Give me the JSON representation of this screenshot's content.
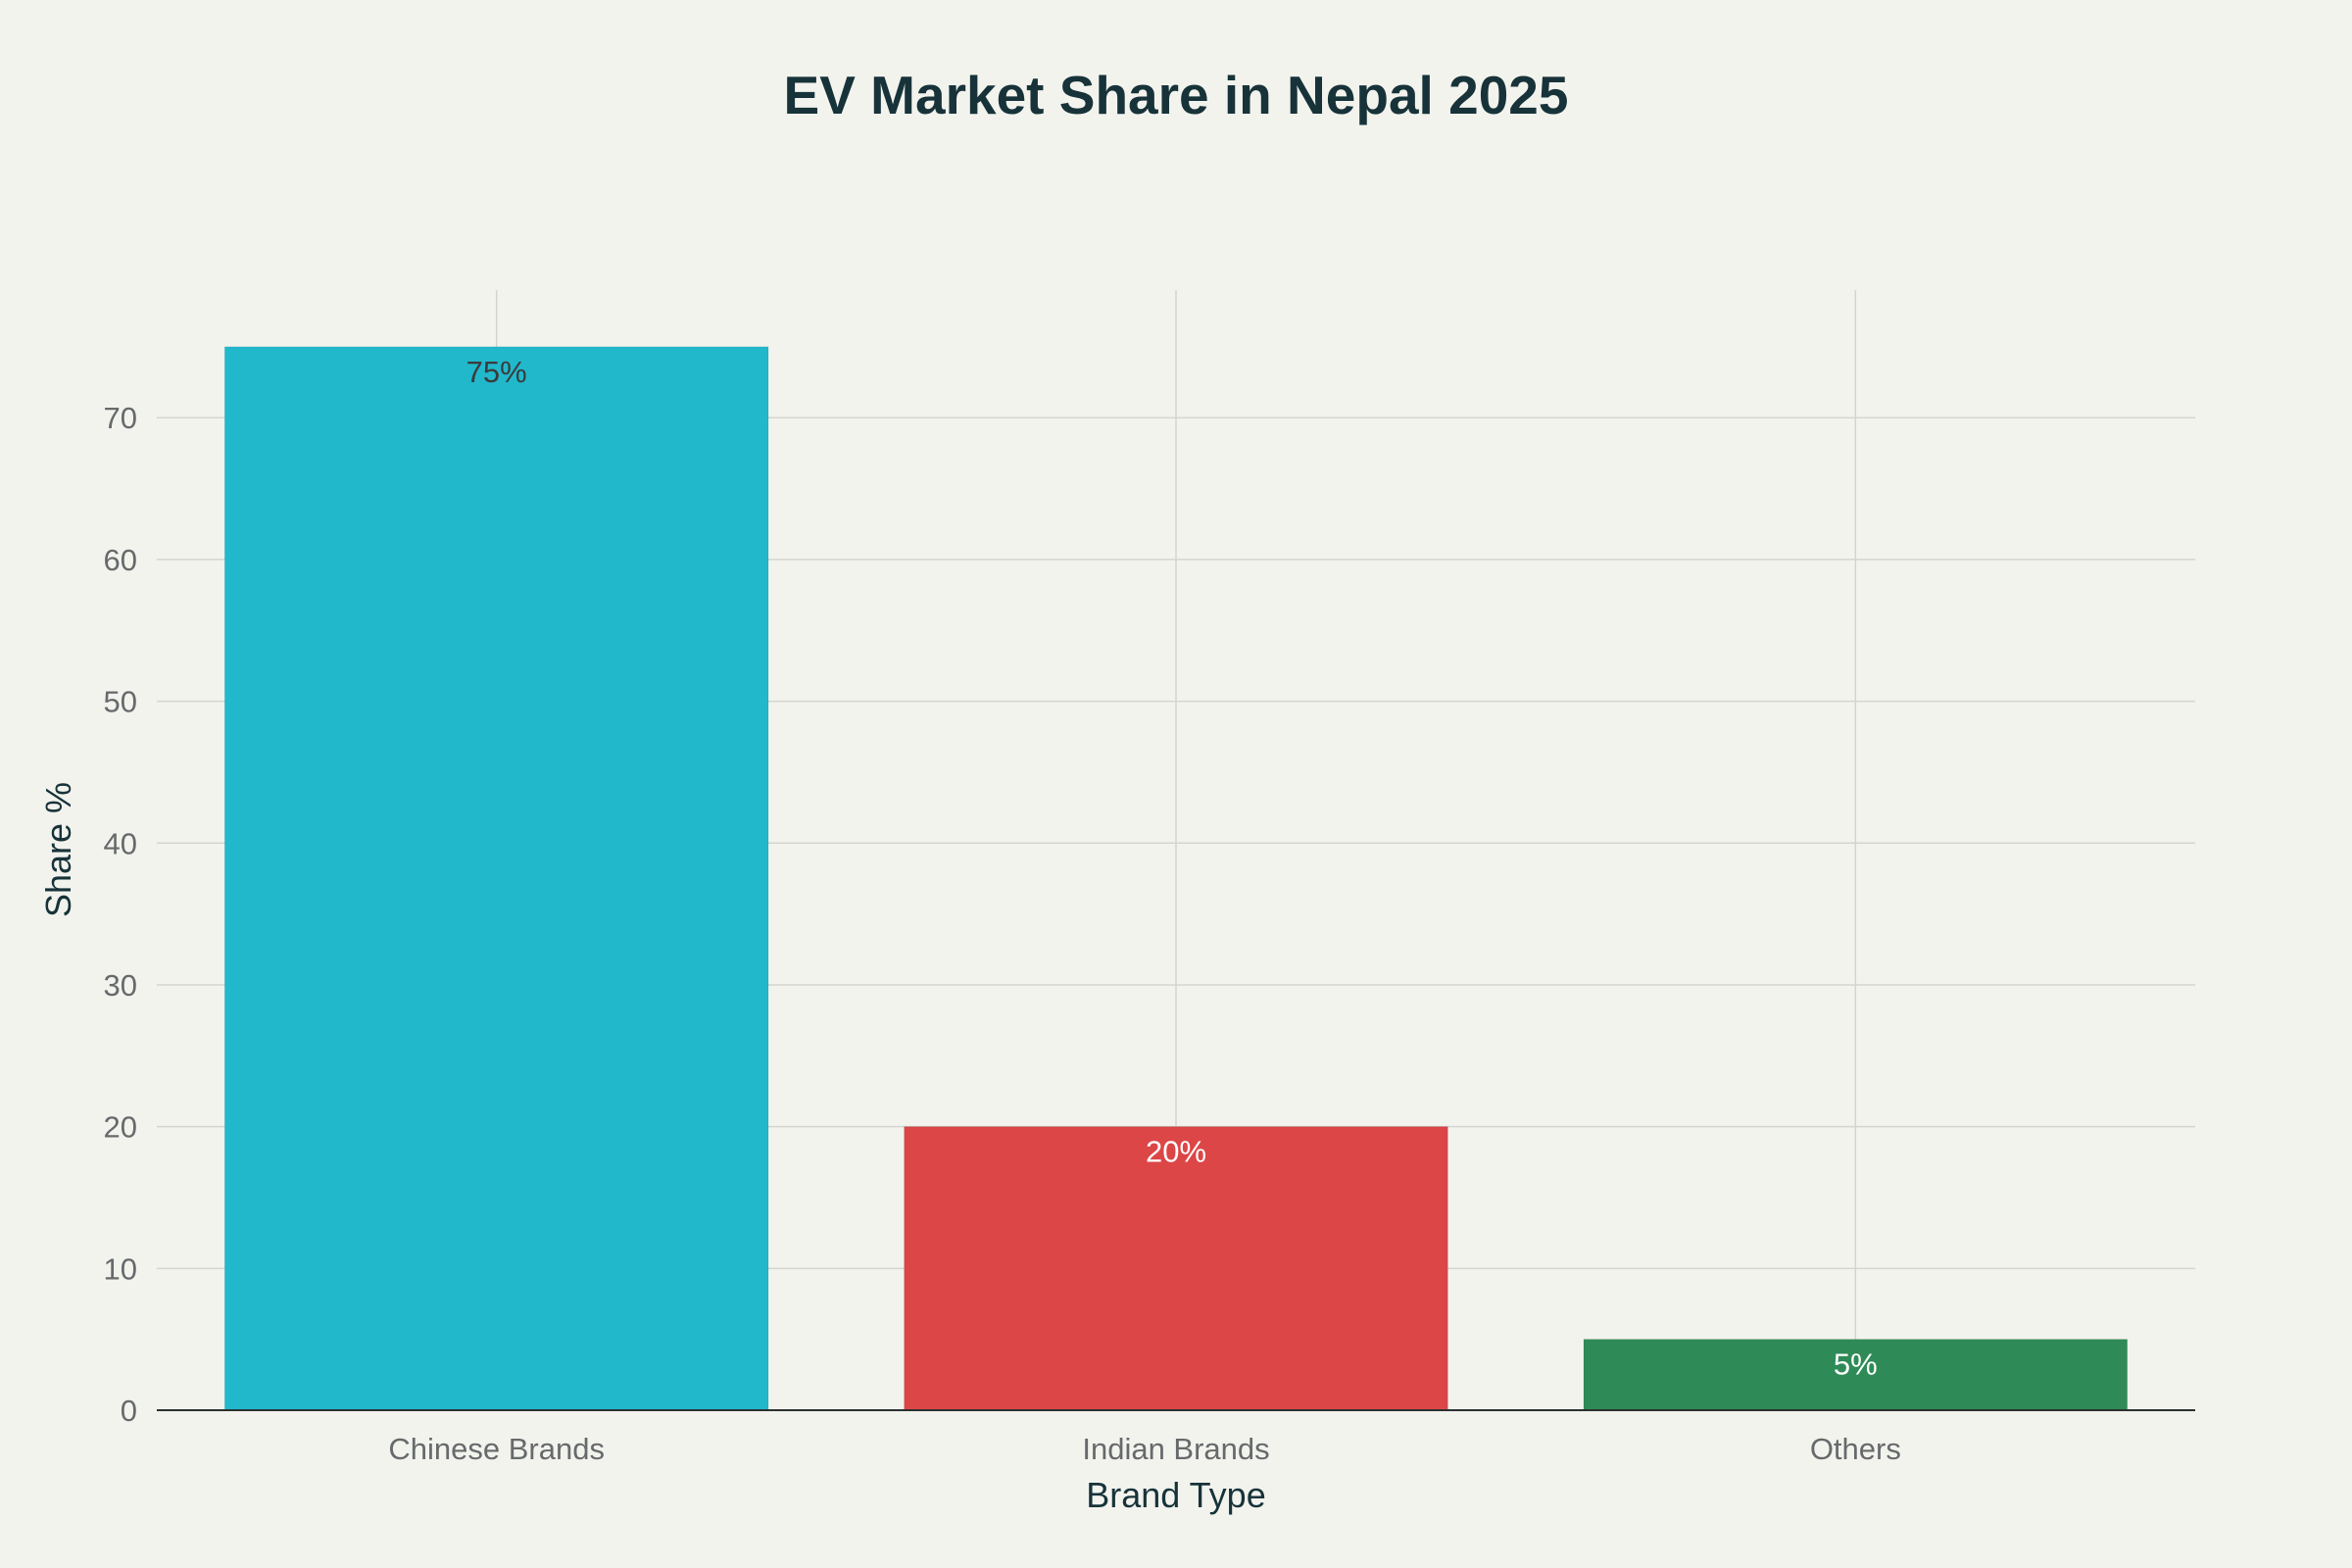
{
  "chart_data": {
    "type": "bar",
    "title": "EV Market Share in Nepal 2025",
    "xlabel": "Brand Type",
    "ylabel": "Share %",
    "categories": [
      "Chinese Brands",
      "Indian Brands",
      "Others"
    ],
    "values": [
      75,
      20,
      5
    ],
    "data_labels": [
      "75%",
      "20%",
      "5%"
    ],
    "bar_colors": [
      "#21b8cc",
      "#dc4647",
      "#2e8b57"
    ],
    "data_label_colors": [
      "#3b3b3b",
      "#ffffff",
      "#ffffff"
    ],
    "y_ticks": [
      0,
      10,
      20,
      30,
      40,
      50,
      60,
      70
    ],
    "ylim": [
      0,
      79
    ],
    "grid": true,
    "legend": "none",
    "colors": {
      "background": "#f3f3ee",
      "title": "#173339",
      "tick_text": "#666a6b",
      "grid": "#d4d5d1"
    }
  }
}
